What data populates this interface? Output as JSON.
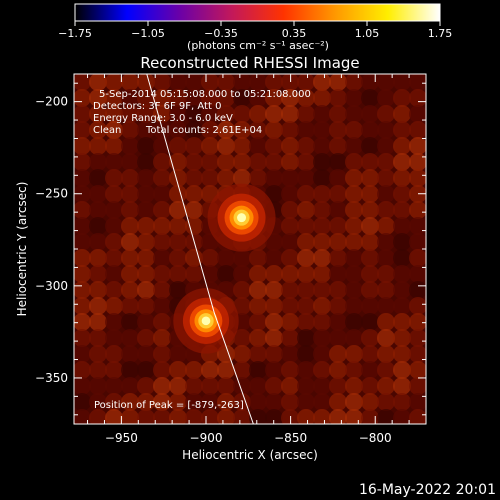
{
  "colorbar": {
    "ticks": [
      "-1.75",
      "-1.05",
      "-0.35",
      "0.35",
      "1.05",
      "1.75"
    ],
    "min": -1.75,
    "max": 1.75,
    "unit_label": "(photons cm⁻² s⁻¹ asec⁻²)",
    "stops": [
      "#000000",
      "#0000ff",
      "#6a00a8",
      "#c2185b",
      "#ff3300",
      "#ff9900",
      "#ffee00",
      "#ffffff"
    ]
  },
  "chart_data": {
    "type": "heatmap",
    "title": "Reconstructed RHESSI Image",
    "xlabel": "Heliocentric X (arcsec)",
    "ylabel": "Heliocentric Y (arcsec)",
    "xlim": [
      -978,
      -770
    ],
    "ylim": [
      -375,
      -185
    ],
    "x_ticks": [
      -950,
      -900,
      -850,
      -800
    ],
    "y_ticks": [
      -200,
      -250,
      -300,
      -350
    ],
    "x_tick_labels": [
      "−950",
      "−900",
      "−850",
      "−800"
    ],
    "y_tick_labels": [
      "−200",
      "−250",
      "−300",
      "−350"
    ],
    "sources": [
      {
        "x": -879,
        "y": -263,
        "peak": 1.0
      },
      {
        "x": -900,
        "y": -319,
        "peak": 0.85
      }
    ],
    "limb_curve": [
      [
        -935,
        -185
      ],
      [
        -915,
        -250
      ],
      [
        -895,
        -315
      ],
      [
        -872,
        -375
      ]
    ],
    "annotations": {
      "time": "5-Sep-2014 05:15:08.000 to 05:21:08.000",
      "detectors": "Detectors: 3F 6F 9F, Att 0",
      "energy": "Energy Range: 3.0 - 6.0 keV",
      "method": "Clean",
      "counts": "Total counts: 2.61E+04",
      "peak_position": "Position of Peak = [-879,-263]"
    }
  },
  "footer": {
    "timestamp": "16-May-2022 20:01"
  }
}
